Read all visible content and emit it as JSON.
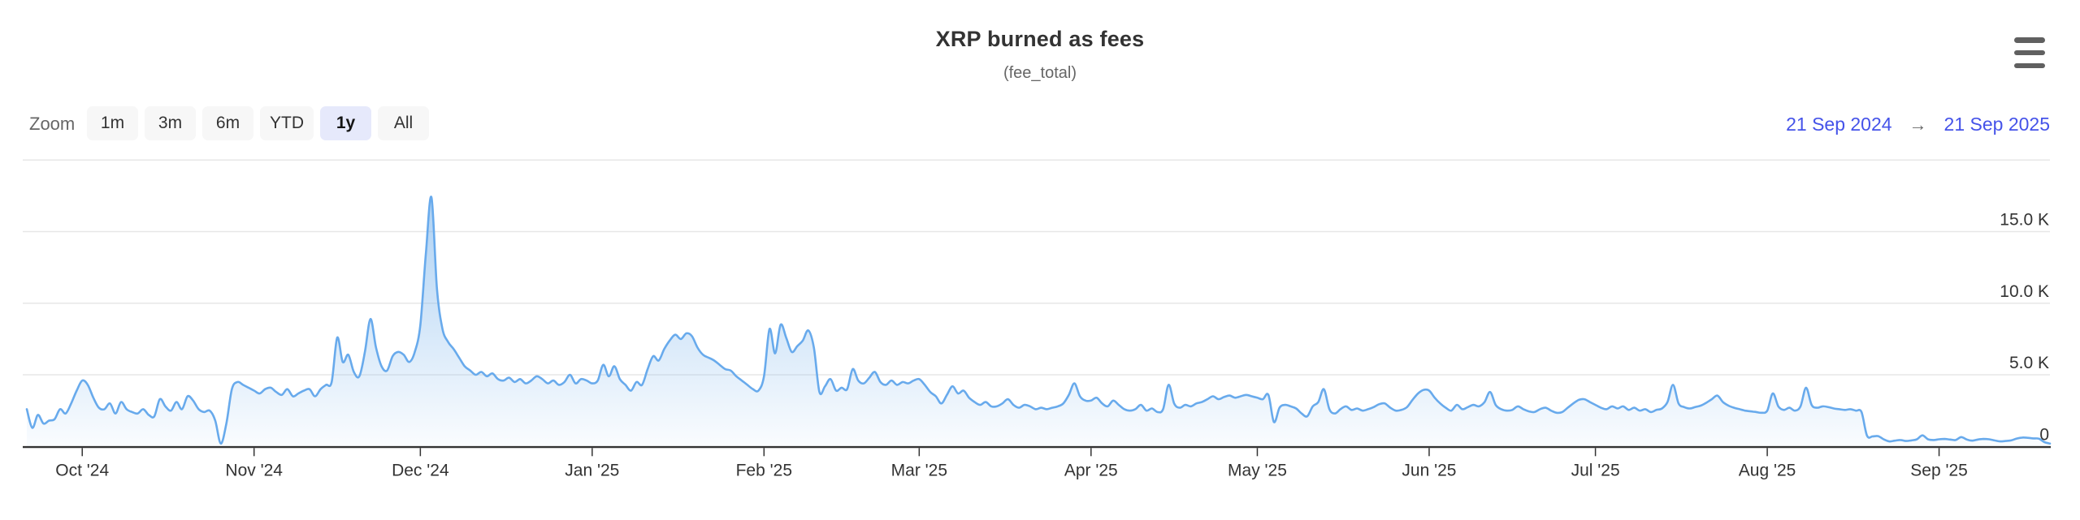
{
  "header": {
    "title": "XRP burned as fees",
    "subtitle": "(fee_total)",
    "menu_icon": "hamburger-icon"
  },
  "range_selector": {
    "zoom_label": "Zoom",
    "buttons": [
      {
        "label": "1m",
        "selected": false
      },
      {
        "label": "3m",
        "selected": false
      },
      {
        "label": "6m",
        "selected": false
      },
      {
        "label": "YTD",
        "selected": false
      },
      {
        "label": "1y",
        "selected": true
      },
      {
        "label": "All",
        "selected": false
      }
    ],
    "from_date": "21 Sep 2024",
    "arrow": "→",
    "to_date": "21 Sep 2025"
  },
  "colors": {
    "line": "#68aaec",
    "area_fill_base": "#7cb5ec",
    "grid": "#e7e7e7",
    "axis": "#333333",
    "tick_text": "#333333",
    "muted_text": "#666666",
    "date_link": "#4553e9",
    "button_bg": "#f7f7f7",
    "button_selected_bg": "#e6e9fb"
  },
  "chart_data": {
    "type": "area",
    "title": "XRP burned as fees",
    "subtitle": "(fee_total)",
    "series_name": "fee_total",
    "x_start": "21 Sep 2024",
    "x_end": "21 Sep 2025",
    "grid": true,
    "legend": "none",
    "ylim": [
      0,
      20000
    ],
    "y_ticks": [
      {
        "value": 0,
        "label": "0"
      },
      {
        "value": 5000,
        "label": "5.0 K"
      },
      {
        "value": 10000,
        "label": "10.0 K"
      },
      {
        "value": 15000,
        "label": "15.0 K"
      },
      {
        "value": 20000,
        "label": ""
      }
    ],
    "x_ticks": [
      {
        "day": 10,
        "label": "Oct '24"
      },
      {
        "day": 41,
        "label": "Nov '24"
      },
      {
        "day": 71,
        "label": "Dec '24"
      },
      {
        "day": 102,
        "label": "Jan '25"
      },
      {
        "day": 133,
        "label": "Feb '25"
      },
      {
        "day": 161,
        "label": "Mar '25"
      },
      {
        "day": 192,
        "label": "Apr '25"
      },
      {
        "day": 222,
        "label": "May '25"
      },
      {
        "day": 253,
        "label": "Jun '25"
      },
      {
        "day": 283,
        "label": "Jul '25"
      },
      {
        "day": 314,
        "label": "Aug '25"
      },
      {
        "day": 345,
        "label": "Sep '25"
      }
    ],
    "points": [
      [
        0,
        2600
      ],
      [
        1,
        1300
      ],
      [
        2,
        2200
      ],
      [
        3,
        1600
      ],
      [
        4,
        1800
      ],
      [
        5,
        1900
      ],
      [
        6,
        2600
      ],
      [
        7,
        2300
      ],
      [
        8,
        3000
      ],
      [
        9,
        3900
      ],
      [
        10,
        4600
      ],
      [
        11,
        4300
      ],
      [
        12,
        3400
      ],
      [
        13,
        2700
      ],
      [
        14,
        2600
      ],
      [
        15,
        3000
      ],
      [
        16,
        2300
      ],
      [
        17,
        3100
      ],
      [
        18,
        2600
      ],
      [
        19,
        2400
      ],
      [
        20,
        2300
      ],
      [
        21,
        2600
      ],
      [
        22,
        2200
      ],
      [
        23,
        2100
      ],
      [
        24,
        3300
      ],
      [
        25,
        2800
      ],
      [
        26,
        2500
      ],
      [
        27,
        3100
      ],
      [
        28,
        2600
      ],
      [
        29,
        3500
      ],
      [
        30,
        3200
      ],
      [
        31,
        2600
      ],
      [
        32,
        2400
      ],
      [
        33,
        2500
      ],
      [
        34,
        1800
      ],
      [
        35,
        200
      ],
      [
        36,
        1600
      ],
      [
        37,
        4000
      ],
      [
        38,
        4500
      ],
      [
        39,
        4300
      ],
      [
        40,
        4100
      ],
      [
        41,
        3900
      ],
      [
        42,
        3700
      ],
      [
        43,
        4000
      ],
      [
        44,
        4100
      ],
      [
        45,
        3800
      ],
      [
        46,
        3600
      ],
      [
        47,
        4000
      ],
      [
        48,
        3500
      ],
      [
        49,
        3700
      ],
      [
        50,
        3900
      ],
      [
        51,
        4000
      ],
      [
        52,
        3500
      ],
      [
        53,
        4000
      ],
      [
        54,
        4300
      ],
      [
        55,
        4500
      ],
      [
        56,
        7600
      ],
      [
        57,
        5900
      ],
      [
        58,
        6400
      ],
      [
        59,
        5200
      ],
      [
        60,
        4900
      ],
      [
        61,
        6600
      ],
      [
        62,
        8900
      ],
      [
        63,
        6900
      ],
      [
        64,
        5600
      ],
      [
        65,
        5300
      ],
      [
        66,
        6300
      ],
      [
        67,
        6600
      ],
      [
        68,
        6400
      ],
      [
        69,
        5900
      ],
      [
        70,
        6600
      ],
      [
        71,
        8500
      ],
      [
        72,
        13500
      ],
      [
        73,
        17400
      ],
      [
        74,
        11000
      ],
      [
        75,
        8200
      ],
      [
        76,
        7300
      ],
      [
        77,
        6800
      ],
      [
        78,
        6200
      ],
      [
        79,
        5600
      ],
      [
        80,
        5300
      ],
      [
        81,
        5000
      ],
      [
        82,
        5200
      ],
      [
        83,
        4900
      ],
      [
        84,
        5100
      ],
      [
        85,
        4700
      ],
      [
        86,
        4600
      ],
      [
        87,
        4800
      ],
      [
        88,
        4500
      ],
      [
        89,
        4700
      ],
      [
        90,
        4400
      ],
      [
        91,
        4600
      ],
      [
        92,
        4900
      ],
      [
        93,
        4700
      ],
      [
        94,
        4400
      ],
      [
        95,
        4600
      ],
      [
        96,
        4300
      ],
      [
        97,
        4500
      ],
      [
        98,
        5000
      ],
      [
        99,
        4400
      ],
      [
        100,
        4700
      ],
      [
        101,
        4600
      ],
      [
        102,
        4400
      ],
      [
        103,
        4600
      ],
      [
        104,
        5700
      ],
      [
        105,
        4900
      ],
      [
        106,
        5600
      ],
      [
        107,
        4700
      ],
      [
        108,
        4300
      ],
      [
        109,
        3900
      ],
      [
        110,
        4500
      ],
      [
        111,
        4300
      ],
      [
        112,
        5400
      ],
      [
        113,
        6300
      ],
      [
        114,
        6000
      ],
      [
        115,
        6800
      ],
      [
        116,
        7400
      ],
      [
        117,
        7800
      ],
      [
        118,
        7500
      ],
      [
        119,
        7900
      ],
      [
        120,
        7700
      ],
      [
        121,
        6900
      ],
      [
        122,
        6400
      ],
      [
        123,
        6200
      ],
      [
        124,
        6000
      ],
      [
        125,
        5700
      ],
      [
        126,
        5400
      ],
      [
        127,
        5300
      ],
      [
        128,
        4900
      ],
      [
        129,
        4600
      ],
      [
        130,
        4300
      ],
      [
        131,
        4000
      ],
      [
        132,
        3900
      ],
      [
        133,
        4900
      ],
      [
        134,
        8200
      ],
      [
        135,
        6500
      ],
      [
        136,
        8500
      ],
      [
        137,
        7600
      ],
      [
        138,
        6600
      ],
      [
        139,
        7000
      ],
      [
        140,
        7400
      ],
      [
        141,
        8100
      ],
      [
        142,
        6900
      ],
      [
        143,
        3800
      ],
      [
        144,
        4200
      ],
      [
        145,
        4700
      ],
      [
        146,
        3900
      ],
      [
        147,
        4100
      ],
      [
        148,
        4000
      ],
      [
        149,
        5400
      ],
      [
        150,
        4600
      ],
      [
        151,
        4400
      ],
      [
        152,
        4800
      ],
      [
        153,
        5200
      ],
      [
        154,
        4500
      ],
      [
        155,
        4300
      ],
      [
        156,
        4600
      ],
      [
        157,
        4300
      ],
      [
        158,
        4500
      ],
      [
        159,
        4400
      ],
      [
        160,
        4600
      ],
      [
        161,
        4700
      ],
      [
        162,
        4300
      ],
      [
        163,
        3800
      ],
      [
        164,
        3500
      ],
      [
        165,
        3000
      ],
      [
        166,
        3600
      ],
      [
        167,
        4200
      ],
      [
        168,
        3700
      ],
      [
        169,
        3900
      ],
      [
        170,
        3400
      ],
      [
        171,
        3100
      ],
      [
        172,
        2900
      ],
      [
        173,
        3100
      ],
      [
        174,
        2800
      ],
      [
        175,
        2800
      ],
      [
        176,
        3000
      ],
      [
        177,
        3300
      ],
      [
        178,
        2900
      ],
      [
        179,
        2700
      ],
      [
        180,
        2900
      ],
      [
        181,
        2800
      ],
      [
        182,
        2600
      ],
      [
        183,
        2700
      ],
      [
        184,
        2600
      ],
      [
        185,
        2700
      ],
      [
        186,
        2800
      ],
      [
        187,
        3000
      ],
      [
        188,
        3600
      ],
      [
        189,
        4400
      ],
      [
        190,
        3500
      ],
      [
        191,
        3200
      ],
      [
        192,
        3200
      ],
      [
        193,
        3400
      ],
      [
        194,
        3000
      ],
      [
        195,
        2800
      ],
      [
        196,
        3200
      ],
      [
        197,
        2900
      ],
      [
        198,
        2600
      ],
      [
        199,
        2500
      ],
      [
        200,
        2600
      ],
      [
        201,
        2900
      ],
      [
        202,
        2500
      ],
      [
        203,
        2650
      ],
      [
        204,
        2400
      ],
      [
        205,
        2600
      ],
      [
        206,
        4300
      ],
      [
        207,
        3000
      ],
      [
        208,
        2700
      ],
      [
        209,
        2900
      ],
      [
        210,
        2800
      ],
      [
        211,
        3000
      ],
      [
        212,
        3100
      ],
      [
        213,
        3300
      ],
      [
        214,
        3500
      ],
      [
        215,
        3300
      ],
      [
        216,
        3450
      ],
      [
        217,
        3550
      ],
      [
        218,
        3400
      ],
      [
        219,
        3500
      ],
      [
        220,
        3600
      ],
      [
        221,
        3500
      ],
      [
        222,
        3400
      ],
      [
        223,
        3300
      ],
      [
        224,
        3600
      ],
      [
        225,
        1700
      ],
      [
        226,
        2700
      ],
      [
        227,
        2900
      ],
      [
        228,
        2800
      ],
      [
        229,
        2650
      ],
      [
        230,
        2300
      ],
      [
        231,
        2100
      ],
      [
        232,
        2800
      ],
      [
        233,
        3100
      ],
      [
        234,
        4000
      ],
      [
        235,
        2600
      ],
      [
        236,
        2300
      ],
      [
        237,
        2600
      ],
      [
        238,
        2800
      ],
      [
        239,
        2550
      ],
      [
        240,
        2650
      ],
      [
        241,
        2500
      ],
      [
        242,
        2600
      ],
      [
        243,
        2750
      ],
      [
        244,
        2950
      ],
      [
        245,
        3000
      ],
      [
        246,
        2700
      ],
      [
        247,
        2500
      ],
      [
        248,
        2550
      ],
      [
        249,
        2750
      ],
      [
        250,
        3250
      ],
      [
        251,
        3700
      ],
      [
        252,
        3950
      ],
      [
        253,
        3900
      ],
      [
        254,
        3400
      ],
      [
        255,
        3000
      ],
      [
        256,
        2700
      ],
      [
        257,
        2500
      ],
      [
        258,
        2900
      ],
      [
        259,
        2600
      ],
      [
        260,
        2750
      ],
      [
        261,
        2900
      ],
      [
        262,
        2800
      ],
      [
        263,
        3100
      ],
      [
        264,
        3800
      ],
      [
        265,
        2900
      ],
      [
        266,
        2600
      ],
      [
        267,
        2500
      ],
      [
        268,
        2550
      ],
      [
        269,
        2800
      ],
      [
        270,
        2600
      ],
      [
        271,
        2450
      ],
      [
        272,
        2400
      ],
      [
        273,
        2600
      ],
      [
        274,
        2700
      ],
      [
        275,
        2500
      ],
      [
        276,
        2350
      ],
      [
        277,
        2400
      ],
      [
        278,
        2700
      ],
      [
        279,
        3000
      ],
      [
        280,
        3250
      ],
      [
        281,
        3300
      ],
      [
        282,
        3100
      ],
      [
        283,
        2900
      ],
      [
        284,
        2700
      ],
      [
        285,
        2600
      ],
      [
        286,
        2800
      ],
      [
        287,
        2650
      ],
      [
        288,
        2800
      ],
      [
        289,
        2550
      ],
      [
        290,
        2700
      ],
      [
        291,
        2500
      ],
      [
        292,
        2600
      ],
      [
        293,
        2400
      ],
      [
        294,
        2550
      ],
      [
        295,
        2650
      ],
      [
        296,
        3100
      ],
      [
        297,
        4300
      ],
      [
        298,
        3000
      ],
      [
        299,
        2750
      ],
      [
        300,
        2650
      ],
      [
        301,
        2750
      ],
      [
        302,
        2850
      ],
      [
        303,
        3050
      ],
      [
        304,
        3300
      ],
      [
        305,
        3550
      ],
      [
        306,
        3100
      ],
      [
        307,
        2850
      ],
      [
        308,
        2700
      ],
      [
        309,
        2600
      ],
      [
        310,
        2500
      ],
      [
        311,
        2450
      ],
      [
        312,
        2400
      ],
      [
        313,
        2350
      ],
      [
        314,
        2500
      ],
      [
        315,
        3700
      ],
      [
        316,
        2800
      ],
      [
        317,
        2550
      ],
      [
        318,
        2700
      ],
      [
        319,
        2500
      ],
      [
        320,
        2800
      ],
      [
        321,
        4100
      ],
      [
        322,
        2900
      ],
      [
        323,
        2700
      ],
      [
        324,
        2800
      ],
      [
        325,
        2750
      ],
      [
        326,
        2650
      ],
      [
        327,
        2600
      ],
      [
        328,
        2550
      ],
      [
        329,
        2600
      ],
      [
        330,
        2500
      ],
      [
        331,
        2400
      ],
      [
        332,
        750
      ],
      [
        333,
        700
      ],
      [
        334,
        720
      ],
      [
        335,
        500
      ],
      [
        336,
        350
      ],
      [
        337,
        400
      ],
      [
        338,
        450
      ],
      [
        339,
        380
      ],
      [
        340,
        420
      ],
      [
        341,
        500
      ],
      [
        342,
        770
      ],
      [
        343,
        500
      ],
      [
        344,
        450
      ],
      [
        345,
        500
      ],
      [
        346,
        520
      ],
      [
        347,
        480
      ],
      [
        348,
        450
      ],
      [
        349,
        650
      ],
      [
        350,
        480
      ],
      [
        351,
        400
      ],
      [
        352,
        480
      ],
      [
        353,
        520
      ],
      [
        354,
        500
      ],
      [
        355,
        420
      ],
      [
        356,
        350
      ],
      [
        357,
        380
      ],
      [
        358,
        420
      ],
      [
        359,
        550
      ],
      [
        360,
        620
      ],
      [
        361,
        600
      ],
      [
        362,
        560
      ],
      [
        363,
        540
      ],
      [
        364,
        300
      ],
      [
        365,
        200
      ]
    ]
  }
}
